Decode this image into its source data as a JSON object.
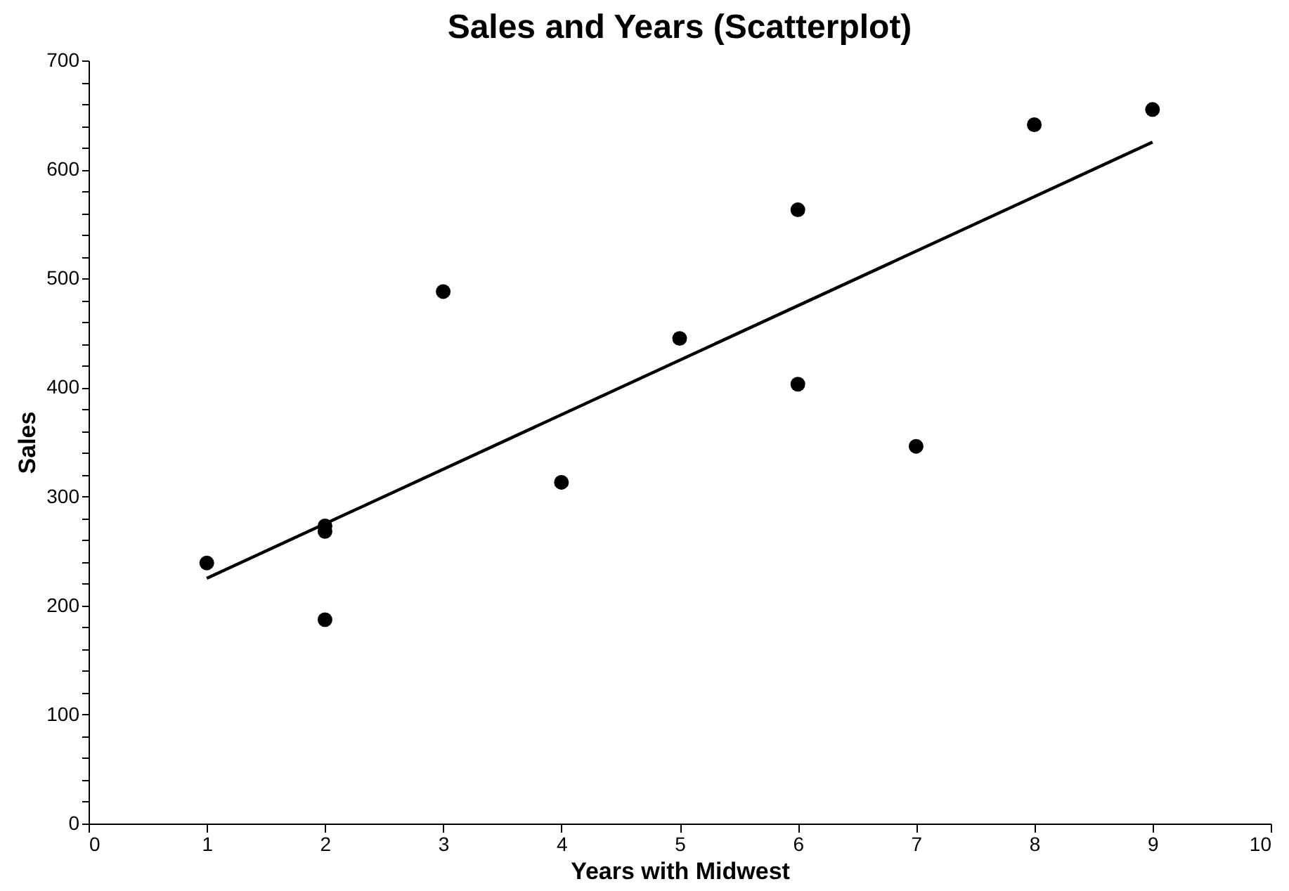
{
  "chart_data": {
    "type": "scatter",
    "title": "Sales and Years (Scatterplot)",
    "xlabel": "Years with Midwest",
    "ylabel": "Sales",
    "xlim": [
      0,
      10
    ],
    "xticks": [
      0,
      1,
      2,
      3,
      4,
      5,
      6,
      7,
      8,
      9,
      10
    ],
    "ylim": [
      0,
      700
    ],
    "yticks": [
      0,
      {
        "value": 20,
        "label": null
      },
      {
        "value": 40,
        "label": null
      },
      {
        "value": 60,
        "label": null
      },
      {
        "value": 80,
        "label": null
      },
      100,
      {
        "value": 120,
        "label": null
      },
      {
        "value": 140,
        "label": null
      },
      {
        "value": 160,
        "label": null
      },
      {
        "value": 180,
        "label": null
      },
      200,
      {
        "value": 220,
        "label": null
      },
      {
        "value": 240,
        "label": null
      },
      {
        "value": 260,
        "label": null
      },
      {
        "value": 280,
        "label": null
      },
      300,
      {
        "value": 320,
        "label": null
      },
      {
        "value": 340,
        "label": null
      },
      {
        "value": 360,
        "label": null
      },
      {
        "value": 380,
        "label": null
      },
      400,
      {
        "value": 420,
        "label": null
      },
      {
        "value": 440,
        "label": null
      },
      {
        "value": 460,
        "label": null
      },
      {
        "value": 480,
        "label": null
      },
      500,
      {
        "value": 520,
        "label": null
      },
      {
        "value": 540,
        "label": null
      },
      {
        "value": 560,
        "label": null
      },
      {
        "value": 580,
        "label": null
      },
      600,
      {
        "value": 620,
        "label": null
      },
      {
        "value": 640,
        "label": null
      },
      {
        "value": 660,
        "label": null
      },
      {
        "value": 680,
        "label": null
      },
      700
    ],
    "grid": false,
    "series": [
      {
        "marker": "circle",
        "color": "#000000",
        "x": [
          1,
          2,
          2,
          2,
          3,
          4,
          5,
          6,
          6,
          7,
          8,
          9
        ],
        "values": [
          239,
          273,
          268,
          187,
          488,
          313,
          445,
          563,
          403,
          346,
          641,
          655
        ]
      },
      {
        "type": "line",
        "color": "#000000",
        "line_style": "solid",
        "x": [
          1,
          9
        ],
        "values": [
          225,
          625
        ]
      }
    ]
  }
}
